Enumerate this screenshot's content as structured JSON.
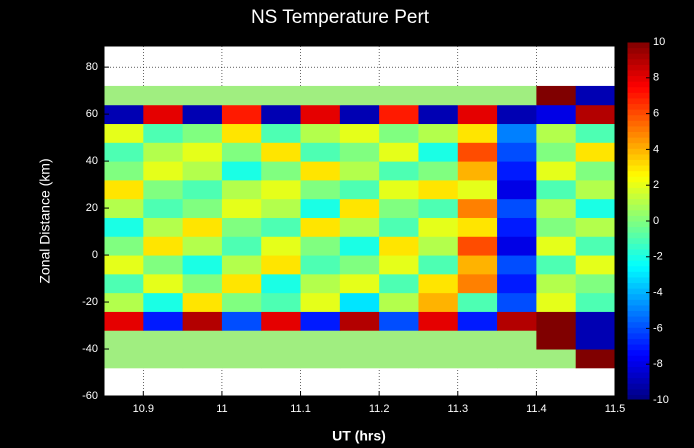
{
  "chart_data": {
    "type": "heatmap",
    "title": "NS Temperature Pert",
    "xlabel": "UT (hrs)",
    "ylabel": "Zonal Distance (km)",
    "xlim": [
      10.85,
      11.5
    ],
    "ylim": [
      -60,
      89
    ],
    "xticks": [
      10.9,
      11,
      11.1,
      11.2,
      11.3,
      11.4,
      11.5
    ],
    "yticks": [
      -60,
      -40,
      -20,
      0,
      20,
      40,
      60,
      80
    ],
    "grid": true,
    "colormap": "jet",
    "nodata_color": "#a0ee80",
    "clim": [
      -10,
      10
    ],
    "cticks": [
      -10,
      -8,
      -6,
      -4,
      -2,
      0,
      2,
      4,
      6,
      8,
      10
    ],
    "x": [
      10.875,
      10.925,
      10.975,
      11.025,
      11.075,
      11.125,
      11.175,
      11.225,
      11.275,
      11.325,
      11.375,
      11.425,
      11.475
    ],
    "y": [
      -44,
      -36,
      -28,
      -20,
      -12,
      -4,
      4,
      12,
      20,
      28,
      36,
      44,
      52,
      60,
      68
    ],
    "z": [
      [
        null,
        null,
        null,
        null,
        null,
        null,
        null,
        null,
        null,
        null,
        null,
        null,
        10
      ],
      [
        null,
        null,
        null,
        null,
        null,
        null,
        null,
        null,
        null,
        null,
        null,
        10,
        -9
      ],
      [
        8,
        -7,
        9,
        -6,
        8,
        -7,
        9,
        -6,
        8,
        -7,
        9,
        10,
        -9
      ],
      [
        1,
        -2,
        3,
        0,
        -1,
        2,
        -3,
        1,
        4,
        -1,
        -6,
        2,
        -1
      ],
      [
        -1,
        2,
        0,
        3,
        -2,
        1,
        2,
        -1,
        3,
        5,
        -7,
        1,
        0
      ],
      [
        2,
        0,
        -2,
        1,
        3,
        -1,
        0,
        2,
        -1,
        4,
        -6,
        -1,
        2
      ],
      [
        0,
        3,
        1,
        -1,
        2,
        0,
        -2,
        3,
        1,
        6,
        -8,
        2,
        -1
      ],
      [
        -2,
        1,
        3,
        0,
        -1,
        3,
        1,
        -1,
        2,
        3,
        -7,
        0,
        1
      ],
      [
        1,
        -1,
        0,
        2,
        1,
        -2,
        3,
        0,
        -1,
        5,
        -6,
        1,
        -2
      ],
      [
        3,
        0,
        -1,
        1,
        2,
        0,
        -1,
        2,
        3,
        2,
        -8,
        -1,
        1
      ],
      [
        0,
        2,
        1,
        -2,
        0,
        3,
        1,
        -1,
        0,
        4,
        -7,
        2,
        0
      ],
      [
        -1,
        1,
        2,
        0,
        3,
        -1,
        0,
        2,
        -2,
        6,
        -6,
        0,
        3
      ],
      [
        2,
        -1,
        0,
        3,
        -1,
        1,
        2,
        0,
        1,
        3,
        -5,
        1,
        -1
      ],
      [
        -9,
        8,
        -9,
        7,
        -9,
        8,
        -9,
        7,
        -9,
        8,
        -9,
        -8,
        9
      ],
      [
        null,
        null,
        null,
        null,
        null,
        null,
        null,
        null,
        null,
        null,
        null,
        10,
        -9
      ]
    ]
  }
}
